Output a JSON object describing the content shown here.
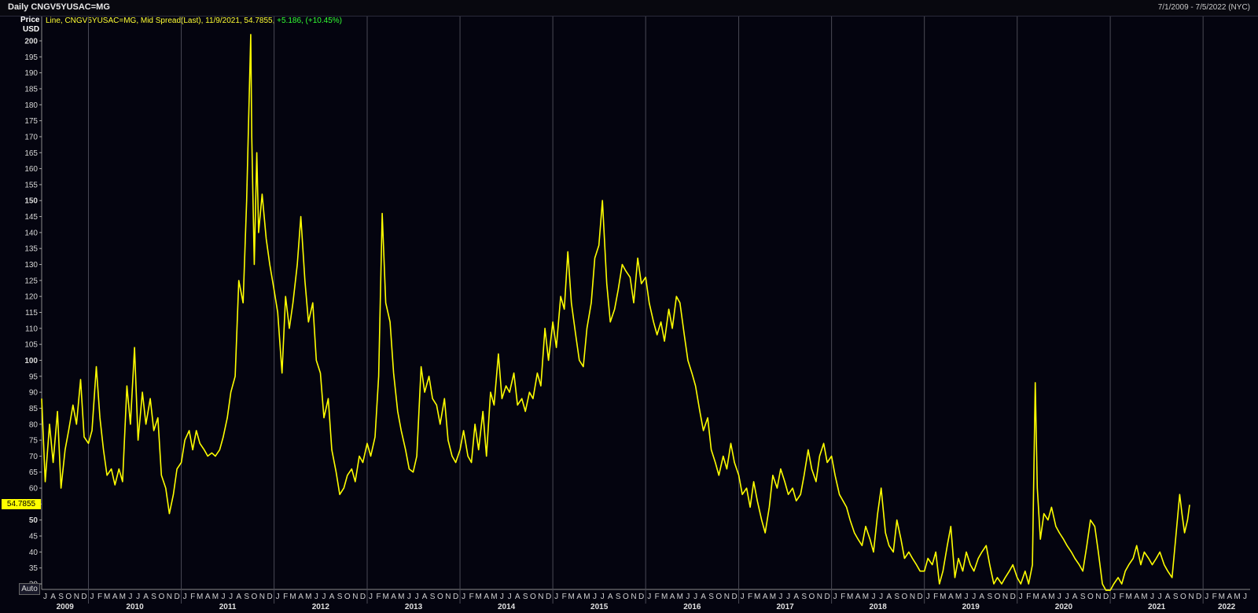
{
  "header": {
    "title": "Daily CNGV5YUSAC=MG",
    "date_range": "7/1/2009 - 7/5/2022 (NYC)"
  },
  "legend": {
    "text": "Line, CNGV5YUSAC=MG, Mid Spread(Last), 11/9/2021, 54.7855,",
    "change": " +5.186, (+10.45%)"
  },
  "y_axis": {
    "label_line1": "Price",
    "label_line2": "USD"
  },
  "last_value_label": "54.7855",
  "auto_button": "Auto",
  "colors": {
    "background": "#04040f",
    "line": "#ffff00",
    "grid": "#4a4a55",
    "change": "#33ff33"
  },
  "chart_data": {
    "type": "line",
    "series": [
      {
        "name": "CNGV5YUSAC=MG",
        "x": [
          "2009-07-01",
          "2009-07-15",
          "2009-08-01",
          "2009-08-15",
          "2009-09-01",
          "2009-09-15",
          "2009-10-01",
          "2009-10-15",
          "2009-11-01",
          "2009-11-15",
          "2009-12-01",
          "2009-12-15",
          "2010-01-01",
          "2010-01-15",
          "2010-02-01",
          "2010-02-15",
          "2010-03-01",
          "2010-03-15",
          "2010-04-01",
          "2010-04-15",
          "2010-05-01",
          "2010-05-15",
          "2010-06-01",
          "2010-06-15",
          "2010-07-01",
          "2010-07-15",
          "2010-08-01",
          "2010-08-15",
          "2010-09-01",
          "2010-09-15",
          "2010-10-01",
          "2010-10-15",
          "2010-11-01",
          "2010-11-15",
          "2010-12-01",
          "2010-12-15",
          "2011-01-01",
          "2011-01-15",
          "2011-02-01",
          "2011-02-15",
          "2011-03-01",
          "2011-03-15",
          "2011-04-01",
          "2011-04-15",
          "2011-05-01",
          "2011-05-15",
          "2011-06-01",
          "2011-06-15",
          "2011-07-01",
          "2011-07-15",
          "2011-08-01",
          "2011-08-15",
          "2011-09-01",
          "2011-09-15",
          "2011-10-01",
          "2011-10-05",
          "2011-10-15",
          "2011-10-25",
          "2011-11-01",
          "2011-11-15",
          "2011-12-01",
          "2011-12-15",
          "2012-01-01",
          "2012-01-15",
          "2012-02-01",
          "2012-02-15",
          "2012-03-01",
          "2012-03-15",
          "2012-04-01",
          "2012-04-15",
          "2012-05-01",
          "2012-05-15",
          "2012-06-01",
          "2012-06-15",
          "2012-07-01",
          "2012-07-15",
          "2012-08-01",
          "2012-08-15",
          "2012-09-01",
          "2012-09-15",
          "2012-10-01",
          "2012-10-15",
          "2012-11-01",
          "2012-11-15",
          "2012-12-01",
          "2012-12-15",
          "2013-01-01",
          "2013-01-15",
          "2013-02-01",
          "2013-02-15",
          "2013-03-01",
          "2013-03-15",
          "2013-04-01",
          "2013-04-15",
          "2013-05-01",
          "2013-05-15",
          "2013-06-01",
          "2013-06-15",
          "2013-07-01",
          "2013-07-15",
          "2013-08-01",
          "2013-08-15",
          "2013-09-01",
          "2013-09-15",
          "2013-10-01",
          "2013-10-15",
          "2013-11-01",
          "2013-11-15",
          "2013-12-01",
          "2013-12-15",
          "2014-01-01",
          "2014-01-15",
          "2014-02-01",
          "2014-02-15",
          "2014-03-01",
          "2014-03-15",
          "2014-04-01",
          "2014-04-15",
          "2014-05-01",
          "2014-05-15",
          "2014-06-01",
          "2014-06-15",
          "2014-07-01",
          "2014-07-15",
          "2014-08-01",
          "2014-08-15",
          "2014-09-01",
          "2014-09-15",
          "2014-10-01",
          "2014-10-15",
          "2014-11-01",
          "2014-11-15",
          "2014-12-01",
          "2014-12-15",
          "2015-01-01",
          "2015-01-15",
          "2015-02-01",
          "2015-02-15",
          "2015-03-01",
          "2015-03-15",
          "2015-04-01",
          "2015-04-15",
          "2015-05-01",
          "2015-05-15",
          "2015-06-01",
          "2015-06-15",
          "2015-07-01",
          "2015-07-15",
          "2015-08-01",
          "2015-08-15",
          "2015-09-01",
          "2015-09-15",
          "2015-10-01",
          "2015-10-15",
          "2015-11-01",
          "2015-11-15",
          "2015-12-01",
          "2015-12-15",
          "2016-01-01",
          "2016-01-15",
          "2016-02-01",
          "2016-02-15",
          "2016-03-01",
          "2016-03-15",
          "2016-04-01",
          "2016-04-15",
          "2016-05-01",
          "2016-05-15",
          "2016-06-01",
          "2016-06-15",
          "2016-07-01",
          "2016-07-15",
          "2016-08-01",
          "2016-08-15",
          "2016-09-01",
          "2016-09-15",
          "2016-10-01",
          "2016-10-15",
          "2016-11-01",
          "2016-11-15",
          "2016-12-01",
          "2016-12-15",
          "2017-01-01",
          "2017-01-15",
          "2017-02-01",
          "2017-02-15",
          "2017-03-01",
          "2017-03-15",
          "2017-04-01",
          "2017-04-15",
          "2017-05-01",
          "2017-05-15",
          "2017-06-01",
          "2017-06-15",
          "2017-07-01",
          "2017-07-15",
          "2017-08-01",
          "2017-08-15",
          "2017-09-01",
          "2017-09-15",
          "2017-10-01",
          "2017-10-15",
          "2017-11-01",
          "2017-11-15",
          "2017-12-01",
          "2017-12-15",
          "2018-01-01",
          "2018-01-15",
          "2018-02-01",
          "2018-02-15",
          "2018-03-01",
          "2018-03-15",
          "2018-04-01",
          "2018-04-15",
          "2018-05-01",
          "2018-05-15",
          "2018-06-01",
          "2018-06-15",
          "2018-07-01",
          "2018-07-15",
          "2018-08-01",
          "2018-08-15",
          "2018-09-01",
          "2018-09-15",
          "2018-10-01",
          "2018-10-15",
          "2018-11-01",
          "2018-11-15",
          "2018-12-01",
          "2018-12-15",
          "2019-01-01",
          "2019-01-15",
          "2019-02-01",
          "2019-02-15",
          "2019-03-01",
          "2019-03-15",
          "2019-04-01",
          "2019-04-15",
          "2019-05-01",
          "2019-05-15",
          "2019-06-01",
          "2019-06-15",
          "2019-07-01",
          "2019-07-15",
          "2019-08-01",
          "2019-08-15",
          "2019-09-01",
          "2019-09-15",
          "2019-10-01",
          "2019-10-15",
          "2019-11-01",
          "2019-11-15",
          "2019-12-01",
          "2019-12-15",
          "2020-01-01",
          "2020-01-15",
          "2020-02-01",
          "2020-02-15",
          "2020-03-01",
          "2020-03-12",
          "2020-03-20",
          "2020-04-01",
          "2020-04-15",
          "2020-05-01",
          "2020-05-15",
          "2020-06-01",
          "2020-06-15",
          "2020-07-01",
          "2020-07-15",
          "2020-08-01",
          "2020-08-15",
          "2020-09-01",
          "2020-09-15",
          "2020-10-01",
          "2020-10-15",
          "2020-11-01",
          "2020-11-15",
          "2020-12-01",
          "2020-12-15",
          "2021-01-01",
          "2021-01-15",
          "2021-02-01",
          "2021-02-15",
          "2021-03-01",
          "2021-03-15",
          "2021-04-01",
          "2021-04-15",
          "2021-05-01",
          "2021-05-15",
          "2021-06-01",
          "2021-06-15",
          "2021-07-01",
          "2021-07-15",
          "2021-08-01",
          "2021-08-15",
          "2021-09-01",
          "2021-09-15",
          "2021-10-01",
          "2021-10-10",
          "2021-10-20",
          "2021-11-01",
          "2021-11-09"
        ],
        "values": [
          88,
          62,
          80,
          68,
          84,
          60,
          72,
          78,
          86,
          80,
          94,
          76,
          74,
          78,
          98,
          82,
          72,
          64,
          66,
          61,
          66,
          62,
          92,
          80,
          104,
          75,
          90,
          80,
          88,
          78,
          82,
          64,
          60,
          52,
          58,
          66,
          68,
          75,
          78,
          72,
          78,
          74,
          72,
          70,
          71,
          70,
          72,
          76,
          82,
          90,
          95,
          125,
          118,
          150,
          202,
          170,
          130,
          165,
          140,
          152,
          138,
          130,
          122,
          115,
          96,
          120,
          110,
          118,
          130,
          145,
          125,
          112,
          118,
          100,
          96,
          82,
          88,
          72,
          65,
          58,
          60,
          64,
          66,
          62,
          70,
          68,
          74,
          70,
          76,
          95,
          146,
          118,
          112,
          96,
          84,
          78,
          72,
          66,
          65,
          70,
          98,
          90,
          95,
          88,
          86,
          80,
          88,
          75,
          70,
          68,
          72,
          78,
          70,
          68,
          80,
          72,
          84,
          70,
          90,
          86,
          102,
          88,
          92,
          90,
          96,
          86,
          88,
          84,
          90,
          88,
          96,
          92,
          110,
          100,
          112,
          104,
          120,
          116,
          134,
          118,
          108,
          100,
          98,
          110,
          118,
          132,
          136,
          150,
          124,
          112,
          116,
          122,
          130,
          128,
          126,
          118,
          132,
          124,
          126,
          118,
          112,
          108,
          112,
          106,
          116,
          110,
          120,
          118,
          108,
          100,
          96,
          92,
          84,
          78,
          82,
          72,
          68,
          64,
          70,
          66,
          74,
          68,
          64,
          58,
          60,
          54,
          62,
          56,
          50,
          46,
          54,
          64,
          60,
          66,
          62,
          58,
          60,
          56,
          58,
          64,
          72,
          66,
          62,
          70,
          74,
          68,
          70,
          64,
          58,
          56,
          54,
          50,
          46,
          44,
          42,
          48,
          44,
          40,
          52,
          60,
          46,
          42,
          40,
          50,
          44,
          38,
          40,
          38,
          36,
          34,
          34,
          38,
          36,
          40,
          30,
          34,
          42,
          48,
          32,
          38,
          34,
          40,
          36,
          34,
          38,
          40,
          42,
          36,
          30,
          32,
          30,
          32,
          34,
          36,
          32,
          30,
          34,
          30,
          36,
          93,
          60,
          44,
          52,
          50,
          54,
          48,
          46,
          44,
          42,
          40,
          38,
          36,
          34,
          42,
          50,
          48,
          40,
          30,
          28,
          28,
          30,
          32,
          30,
          34,
          36,
          38,
          42,
          36,
          40,
          38,
          36,
          38,
          40,
          36,
          34,
          32,
          44,
          58,
          52,
          46,
          50,
          54.7855
        ]
      }
    ],
    "ylim": [
      26,
      203
    ],
    "y_ticks": [
      30,
      35,
      40,
      45,
      50,
      55,
      60,
      65,
      70,
      75,
      80,
      85,
      90,
      95,
      100,
      105,
      110,
      115,
      120,
      125,
      130,
      135,
      140,
      145,
      150,
      155,
      160,
      165,
      170,
      175,
      180,
      185,
      190,
      195,
      200
    ],
    "x_range": [
      "2009-07-01",
      "2022-07-05"
    ],
    "years": [
      "2009",
      "2010",
      "2011",
      "2012",
      "2013",
      "2014",
      "2015",
      "2016",
      "2017",
      "2018",
      "2019",
      "2020",
      "2021",
      "2022"
    ],
    "month_letters": [
      "J",
      "F",
      "M",
      "A",
      "M",
      "J",
      "J",
      "A",
      "S",
      "O",
      "N",
      "D"
    ],
    "grid": "vertical year lines"
  }
}
